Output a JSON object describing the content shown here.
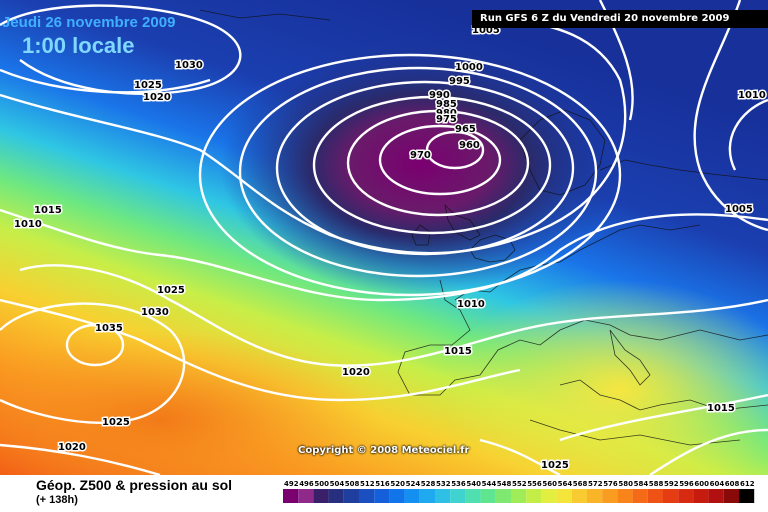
{
  "header": {
    "date": "Jeudi 26 novembre 2009",
    "time": "1:00 locale",
    "run": "Run GFS 6 Z du Vendredi 20 novembre 2009"
  },
  "copyright": "Copyright © 2008 Meteociel.fr",
  "footer": {
    "title": "Géop. Z500 & pression au sol",
    "subtitle": "(+ 138h)"
  },
  "legend": {
    "values": [
      "492",
      "496",
      "500",
      "504",
      "508",
      "512",
      "516",
      "520",
      "524",
      "528",
      "532",
      "536",
      "540",
      "544",
      "548",
      "552",
      "556",
      "560",
      "564",
      "568",
      "572",
      "576",
      "580",
      "584",
      "588",
      "592",
      "596",
      "600",
      "604",
      "608",
      "612"
    ],
    "colors": [
      "#7a0070",
      "#8f2a8a",
      "#3a1f6a",
      "#26307e",
      "#1f3f9e",
      "#1b4fc0",
      "#1560da",
      "#1274ea",
      "#1390f2",
      "#1faaf0",
      "#2fc0e6",
      "#3fd3d0",
      "#4fdfb0",
      "#5fe590",
      "#7fe870",
      "#a0ec58",
      "#c3ee48",
      "#e2ee40",
      "#f5e43a",
      "#f8cc30",
      "#fab428",
      "#fa9c20",
      "#f8841a",
      "#f46a16",
      "#ee5214",
      "#e63c12",
      "#d82a10",
      "#c61c10",
      "#b01010",
      "#8a0a0a",
      "#000000"
    ]
  },
  "map": {
    "labels": [
      {
        "text": "1030"
      },
      {
        "text": "1025"
      },
      {
        "text": "1020"
      },
      {
        "text": "1005"
      },
      {
        "text": "1000"
      },
      {
        "text": "995"
      },
      {
        "text": "990"
      },
      {
        "text": "985"
      },
      {
        "text": "980"
      },
      {
        "text": "975"
      },
      {
        "text": "965"
      },
      {
        "text": "960"
      },
      {
        "text": "970"
      },
      {
        "text": "1010"
      },
      {
        "text": "1015"
      },
      {
        "text": "1010"
      },
      {
        "text": "1005"
      },
      {
        "text": "1025"
      },
      {
        "text": "1030"
      },
      {
        "text": "1035"
      },
      {
        "text": "1010"
      },
      {
        "text": "1015"
      },
      {
        "text": "1020"
      },
      {
        "text": "1015"
      },
      {
        "text": "1025"
      },
      {
        "text": "1020"
      },
      {
        "text": "1025"
      }
    ]
  }
}
